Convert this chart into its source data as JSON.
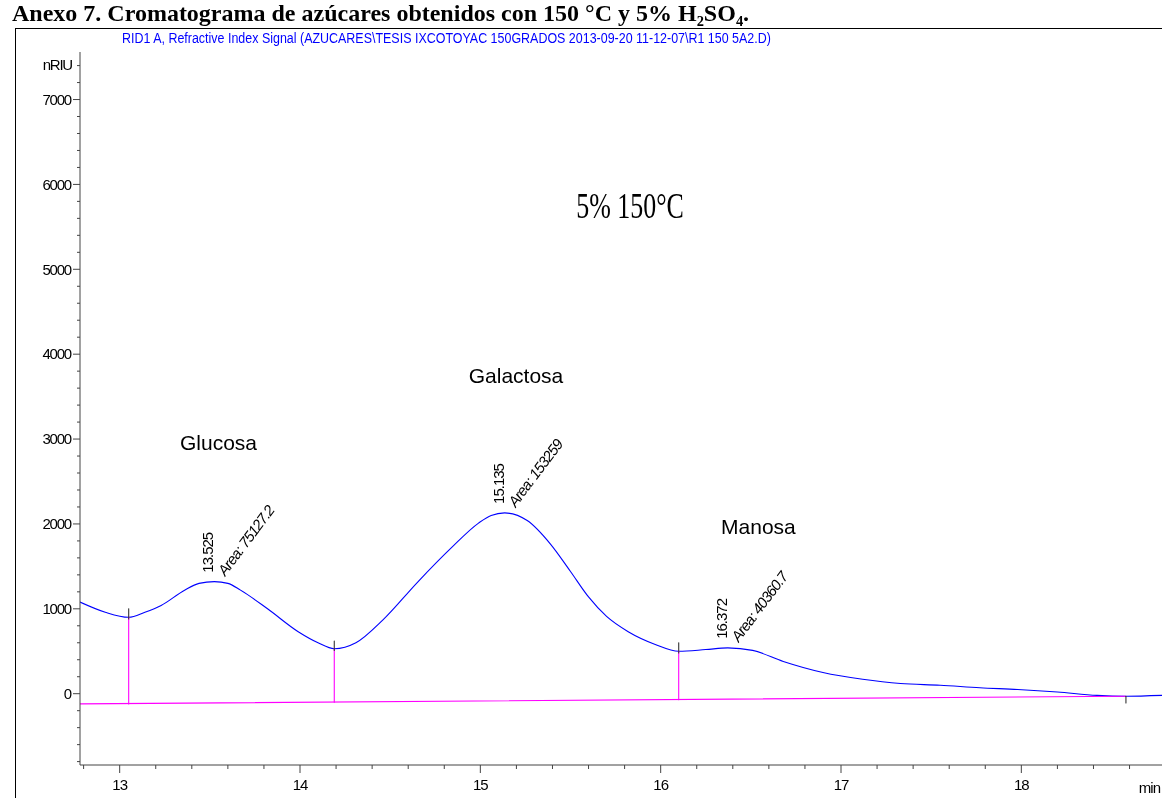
{
  "chart_data": {
    "type": "line",
    "title": "Anexo 7. Cromatograma de azúcares obtenidos con 150 °C y 5% H₂SO₄.",
    "subtitle": "RID1 A, Refractive Index Signal (AZUCARES\\TESIS IXCOTOYAC 150GRADOS 2013-09-20 11-12-07\\R1 150 5A2.D)",
    "xlabel": "min",
    "ylabel": "nRIU",
    "xlim": [
      12.78,
      18.78
    ],
    "ylim": [
      -840,
      7560
    ],
    "xticks": [
      {
        "value": 12.8,
        "label": null
      },
      13,
      {
        "value": 13.2,
        "label": null
      },
      {
        "value": 13.4,
        "label": null
      },
      {
        "value": 13.6,
        "label": null
      },
      {
        "value": 13.8,
        "label": null
      },
      14,
      {
        "value": 14.2,
        "label": null
      },
      {
        "value": 14.4,
        "label": null
      },
      {
        "value": 14.6,
        "label": null
      },
      {
        "value": 14.8,
        "label": null
      },
      15,
      {
        "value": 15.2,
        "label": null
      },
      {
        "value": 15.4,
        "label": null
      },
      {
        "value": 15.6,
        "label": null
      },
      {
        "value": 15.8,
        "label": null
      },
      16,
      {
        "value": 16.2,
        "label": null
      },
      {
        "value": 16.4,
        "label": null
      },
      {
        "value": 16.6,
        "label": null
      },
      {
        "value": 16.8,
        "label": null
      },
      17,
      {
        "value": 17.2,
        "label": null
      },
      {
        "value": 17.4,
        "label": null
      },
      {
        "value": 17.6,
        "label": null
      },
      {
        "value": 17.8,
        "label": null
      },
      18,
      {
        "value": 18.2,
        "label": null
      },
      {
        "value": 18.4,
        "label": null
      },
      {
        "value": 18.6,
        "label": null
      }
    ],
    "yticks": [
      {
        "value": -800,
        "label": null
      },
      {
        "value": -600,
        "label": null
      },
      {
        "value": -400,
        "label": null
      },
      {
        "value": -200,
        "label": null
      },
      0,
      {
        "value": 200,
        "label": null
      },
      {
        "value": 400,
        "label": null
      },
      {
        "value": 600,
        "label": null
      },
      {
        "value": 800,
        "label": null
      },
      1000,
      {
        "value": 1200,
        "label": null
      },
      {
        "value": 1400,
        "label": null
      },
      {
        "value": 1600,
        "label": null
      },
      {
        "value": 1800,
        "label": null
      },
      2000,
      {
        "value": 2200,
        "label": null
      },
      {
        "value": 2400,
        "label": null
      },
      {
        "value": 2600,
        "label": null
      },
      {
        "value": 2800,
        "label": null
      },
      3000,
      {
        "value": 3200,
        "label": null
      },
      {
        "value": 3400,
        "label": null
      },
      {
        "value": 3600,
        "label": null
      },
      {
        "value": 3800,
        "label": null
      },
      4000,
      {
        "value": 4200,
        "label": null
      },
      {
        "value": 4400,
        "label": null
      },
      {
        "value": 4600,
        "label": null
      },
      {
        "value": 4800,
        "label": null
      },
      5000,
      {
        "value": 5200,
        "label": null
      },
      {
        "value": 5400,
        "label": null
      },
      {
        "value": 5600,
        "label": null
      },
      {
        "value": 5800,
        "label": null
      },
      6000,
      {
        "value": 6200,
        "label": null
      },
      {
        "value": 6400,
        "label": null
      },
      {
        "value": 6600,
        "label": null
      },
      {
        "value": 6800,
        "label": null
      },
      7000,
      {
        "value": 7200,
        "label": null
      },
      {
        "value": 7400,
        "label": null
      }
    ],
    "marker": "none",
    "line_style": "solid",
    "series": [
      {
        "color": "#0000ff",
        "x": [
          12.78,
          12.92,
          13.05,
          13.14,
          13.23,
          13.36,
          13.44,
          13.525,
          13.6,
          13.67,
          13.82,
          13.99,
          14.1,
          14.19,
          14.31,
          14.46,
          14.65,
          14.84,
          14.99,
          15.06,
          15.135,
          15.26,
          15.39,
          15.5,
          15.6,
          15.7,
          15.82,
          15.97,
          16.1,
          16.25,
          16.372,
          16.51,
          16.68,
          16.9,
          17.12,
          17.33,
          17.55,
          17.77,
          17.98,
          18.2,
          18.42,
          18.58,
          18.78
        ],
        "values": [
          1080,
          960,
          900,
          960,
          1040,
          1220,
          1300,
          1320,
          1300,
          1220,
          1000,
          730,
          600,
          530,
          600,
          870,
          1310,
          1720,
          2010,
          2100,
          2130,
          2040,
          1760,
          1440,
          1140,
          910,
          730,
          580,
          500,
          520,
          540,
          510,
          380,
          250,
          170,
          120,
          100,
          70,
          50,
          20,
          -20,
          -30,
          -20
        ]
      },
      {
        "color": "#ff00ff",
        "x": [
          12.78,
          18.58
        ],
        "values": [
          -120,
          -30
        ]
      },
      {
        "color": "#ff00ff",
        "x": [
          13.05,
          13.05
        ],
        "values": [
          -120,
          900
        ]
      },
      {
        "color": "#ff00ff",
        "x": [
          14.19,
          14.19
        ],
        "values": [
          -100,
          530
        ]
      },
      {
        "color": "#ff00ff",
        "x": [
          16.1,
          16.1
        ],
        "values": [
          -70,
          500
        ]
      },
      {
        "color": "#333333",
        "x": [
          13.05,
          13.05
        ],
        "values": [
          1000,
          880
        ]
      },
      {
        "color": "#333333",
        "x": [
          14.19,
          14.19
        ],
        "values": [
          620,
          510
        ]
      },
      {
        "color": "#333333",
        "x": [
          16.1,
          16.1
        ],
        "values": [
          600,
          480
        ]
      },
      {
        "color": "#333333",
        "x": [
          18.58,
          18.58
        ],
        "values": [
          -30,
          -110
        ]
      }
    ],
    "annotations": [
      "5% 150°C",
      "Glucosa",
      "Galactosa",
      "Manosa",
      {
        "text": "13.525",
        "x": 13.525,
        "y": 1320
      },
      {
        "text": "Area: 75127.2",
        "x": 13.525,
        "y": 1320
      },
      {
        "text": "15.135",
        "x": 15.135,
        "y": 2130
      },
      {
        "text": "Area: 153259",
        "x": 15.135,
        "y": 2130
      },
      {
        "text": "16.372",
        "x": 16.372,
        "y": 540
      },
      {
        "text": "Area: 40360.7",
        "x": 16.372,
        "y": 540
      }
    ]
  }
}
